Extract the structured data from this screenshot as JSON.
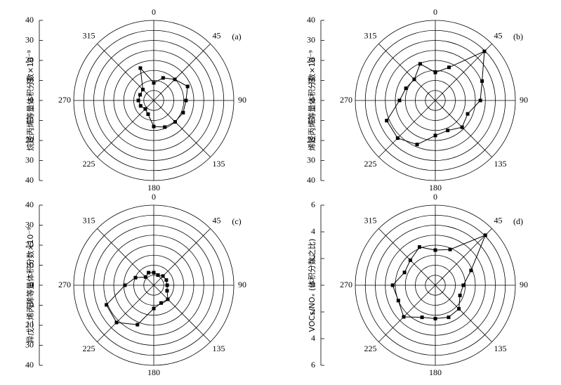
{
  "chart_data": [
    {
      "type": "polar",
      "panel": "(a)",
      "ylabel": "烷烃丙烯等量体积分数×10⁻⁹",
      "x": [
        0,
        22.5,
        45,
        67.5,
        90,
        112.5,
        135,
        157.5,
        180,
        202.5,
        225,
        247.5,
        270,
        292.5,
        315,
        337.5
      ],
      "values": [
        8.8,
        12.2,
        14.9,
        18.3,
        16.1,
        15.9,
        15.1,
        14.4,
        13,
        7.4,
        6,
        7.1,
        7.7,
        7.4,
        7.7,
        17.5
      ],
      "xticks": [
        0,
        45,
        90,
        135,
        180,
        225,
        270,
        315
      ],
      "ylim": [
        0,
        40
      ],
      "yticks": [
        0,
        10,
        20,
        30,
        40
      ],
      "rgrid": [
        5,
        10,
        15,
        20,
        25,
        30,
        35,
        40
      ],
      "color": "#000000"
    },
    {
      "type": "polar",
      "panel": "(b)",
      "ylabel": "烯烃丙烯等量体积分数×10⁻⁹",
      "x": [
        0,
        22.5,
        45,
        67.5,
        90,
        112.5,
        135,
        157.5,
        180,
        202.5,
        225,
        247.5,
        270,
        292.5,
        315,
        337.5
      ],
      "values": [
        14,
        17.9,
        34.7,
        25.3,
        22.5,
        17.5,
        18.9,
        16.2,
        17.5,
        23.8,
        26.6,
        26.3,
        17.9,
        15.9,
        14.9,
        19.8
      ],
      "xticks": [
        0,
        45,
        90,
        135,
        180,
        225,
        270,
        315
      ],
      "ylim": [
        0,
        40
      ],
      "yticks": [
        0,
        10,
        20,
        30,
        40
      ],
      "rgrid": [
        5,
        10,
        15,
        20,
        25,
        30,
        35,
        40
      ],
      "color": "#000000"
    },
    {
      "type": "polar",
      "panel": "(c)",
      "ylabel": "异戊二烯丙烯等量体积分数×10⁻⁹",
      "x": [
        0,
        22.5,
        45,
        67.5,
        90,
        112.5,
        135,
        157.5,
        180,
        202.5,
        225,
        247.5,
        270,
        292.5,
        315,
        337.5
      ],
      "values": [
        6.3,
        5.5,
        6.5,
        6.8,
        6.7,
        7.2,
        9.9,
        9.6,
        11.6,
        21.3,
        26.3,
        25.6,
        14.4,
        9.9,
        5.8,
        6.8
      ],
      "xticks": [
        0,
        45,
        90,
        135,
        180,
        225,
        270,
        315
      ],
      "ylim": [
        0,
        40
      ],
      "yticks": [
        0,
        10,
        20,
        30,
        40
      ],
      "rgrid": [
        5,
        10,
        15,
        20,
        25,
        30,
        35,
        40
      ],
      "color": "#000000"
    },
    {
      "type": "polar",
      "panel": "(d)",
      "ylabel": "VOCs/NOₓ (体积分数之比)",
      "x": [
        0,
        22.5,
        45,
        67.5,
        90,
        112.5,
        135,
        157.5,
        180,
        202.5,
        225,
        247.5,
        270,
        292.5,
        315,
        337.5
      ],
      "values": [
        2.63,
        2.9,
        5.3,
        2.9,
        2.1,
        2.0,
        2.5,
        2.6,
        2.5,
        2.6,
        3.35,
        3.0,
        3.2,
        2.5,
        2.65,
        3.1
      ],
      "xticks": [
        0,
        45,
        90,
        135,
        180,
        225,
        270,
        315
      ],
      "ylim": [
        0,
        6
      ],
      "yticks": [
        0,
        2,
        4,
        6
      ],
      "rgrid": [
        0.75,
        1.5,
        2.25,
        3,
        3.75,
        4.5,
        5.25,
        6
      ],
      "color": "#000000"
    }
  ]
}
